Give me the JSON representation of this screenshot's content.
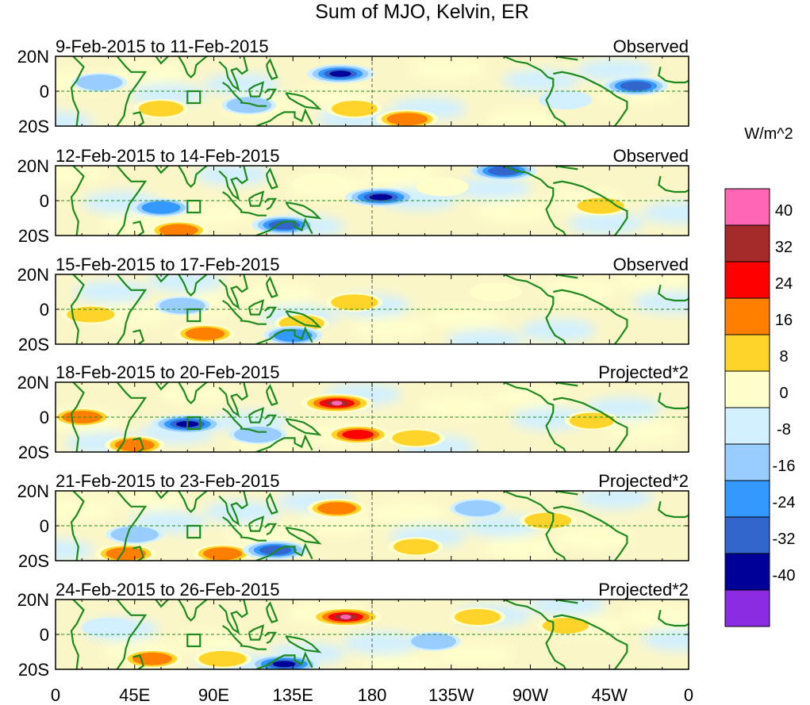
{
  "chart_data": {
    "type": "heatmap",
    "title": "Sum of MJO, Kelvin, ER",
    "units": "W/m^2",
    "x_ticks": [
      "0",
      "45E",
      "90E",
      "135E",
      "180",
      "135W",
      "90W",
      "45W",
      "0"
    ],
    "y_ticks": [
      "20N",
      "0",
      "20S"
    ],
    "x_range": [
      0,
      360
    ],
    "y_range": [
      -20,
      20
    ],
    "colorbar": {
      "labels": [
        "40",
        "32",
        "24",
        "16",
        "8",
        "0",
        "-8",
        "-16",
        "-24",
        "-32",
        "-40"
      ],
      "colors": [
        "#ff66b3",
        "#a52a2a",
        "#ff0000",
        "#ff7f00",
        "#ffd42a",
        "#ffffcc",
        "#d2f0ff",
        "#99ccff",
        "#3399ff",
        "#3366cc",
        "#000099",
        "#8b2be2"
      ]
    },
    "panels": [
      {
        "date_range": "9-Feb-2015 to 11-Feb-2015",
        "label": "Observed",
        "anomalies": [
          {
            "lon": 162,
            "lat": 10,
            "v": -36
          },
          {
            "lon": 170,
            "lat": -10,
            "v": 14
          },
          {
            "lon": 200,
            "lat": -16,
            "v": 26
          },
          {
            "lon": 110,
            "lat": -8,
            "v": -12
          },
          {
            "lon": 60,
            "lat": -10,
            "v": 12
          },
          {
            "lon": 330,
            "lat": 3,
            "v": -30
          },
          {
            "lon": 25,
            "lat": 5,
            "v": -14
          },
          {
            "lon": 290,
            "lat": -5,
            "v": -10
          }
        ]
      },
      {
        "date_range": "12-Feb-2015 to 14-Feb-2015",
        "label": "Observed",
        "anomalies": [
          {
            "lon": 185,
            "lat": 2,
            "v": -42
          },
          {
            "lon": 255,
            "lat": 17,
            "v": -32
          },
          {
            "lon": 130,
            "lat": -14,
            "v": -30
          },
          {
            "lon": 70,
            "lat": -17,
            "v": 20
          },
          {
            "lon": 60,
            "lat": -4,
            "v": -20
          },
          {
            "lon": 310,
            "lat": -3,
            "v": 16
          },
          {
            "lon": 150,
            "lat": 10,
            "v": 10
          },
          {
            "lon": 220,
            "lat": 8,
            "v": 9
          }
        ]
      },
      {
        "date_range": "15-Feb-2015 to 17-Feb-2015",
        "label": "Observed",
        "anomalies": [
          {
            "lon": 20,
            "lat": -3,
            "v": 18
          },
          {
            "lon": 85,
            "lat": -14,
            "v": 22
          },
          {
            "lon": 140,
            "lat": -8,
            "v": 12
          },
          {
            "lon": 135,
            "lat": -15,
            "v": -20
          },
          {
            "lon": 72,
            "lat": 2,
            "v": -14
          },
          {
            "lon": 170,
            "lat": 4,
            "v": 16
          },
          {
            "lon": 250,
            "lat": 10,
            "v": 9
          },
          {
            "lon": 300,
            "lat": 10,
            "v": 10
          }
        ]
      },
      {
        "date_range": "18-Feb-2015 to 20-Feb-2015",
        "label": "Projected*2",
        "anomalies": [
          {
            "lon": 160,
            "lat": 8,
            "v": 44
          },
          {
            "lon": 172,
            "lat": -10,
            "v": 30
          },
          {
            "lon": 75,
            "lat": -4,
            "v": -42
          },
          {
            "lon": 15,
            "lat": 0,
            "v": 22
          },
          {
            "lon": 45,
            "lat": -16,
            "v": 22
          },
          {
            "lon": 205,
            "lat": -12,
            "v": 18
          },
          {
            "lon": 115,
            "lat": -10,
            "v": -18
          },
          {
            "lon": 305,
            "lat": -2,
            "v": 12
          }
        ]
      },
      {
        "date_range": "21-Feb-2015 to 23-Feb-2015",
        "label": "Projected*2",
        "anomalies": [
          {
            "lon": 160,
            "lat": 10,
            "v": 20
          },
          {
            "lon": 40,
            "lat": -16,
            "v": 24
          },
          {
            "lon": 95,
            "lat": -16,
            "v": 20
          },
          {
            "lon": 125,
            "lat": -14,
            "v": -32
          },
          {
            "lon": 45,
            "lat": -5,
            "v": -18
          },
          {
            "lon": 280,
            "lat": 3,
            "v": 16
          },
          {
            "lon": 240,
            "lat": 10,
            "v": -14
          },
          {
            "lon": 205,
            "lat": -12,
            "v": 12
          }
        ]
      },
      {
        "date_range": "24-Feb-2015 to 26-Feb-2015",
        "label": "Projected*2",
        "anomalies": [
          {
            "lon": 165,
            "lat": 10,
            "v": 44
          },
          {
            "lon": 130,
            "lat": -17,
            "v": -42
          },
          {
            "lon": 55,
            "lat": -14,
            "v": 22
          },
          {
            "lon": 95,
            "lat": -14,
            "v": 18
          },
          {
            "lon": 240,
            "lat": 10,
            "v": 14
          },
          {
            "lon": 290,
            "lat": 5,
            "v": 14
          },
          {
            "lon": 215,
            "lat": -4,
            "v": -12
          },
          {
            "lon": 30,
            "lat": 4,
            "v": -10
          }
        ]
      }
    ]
  }
}
